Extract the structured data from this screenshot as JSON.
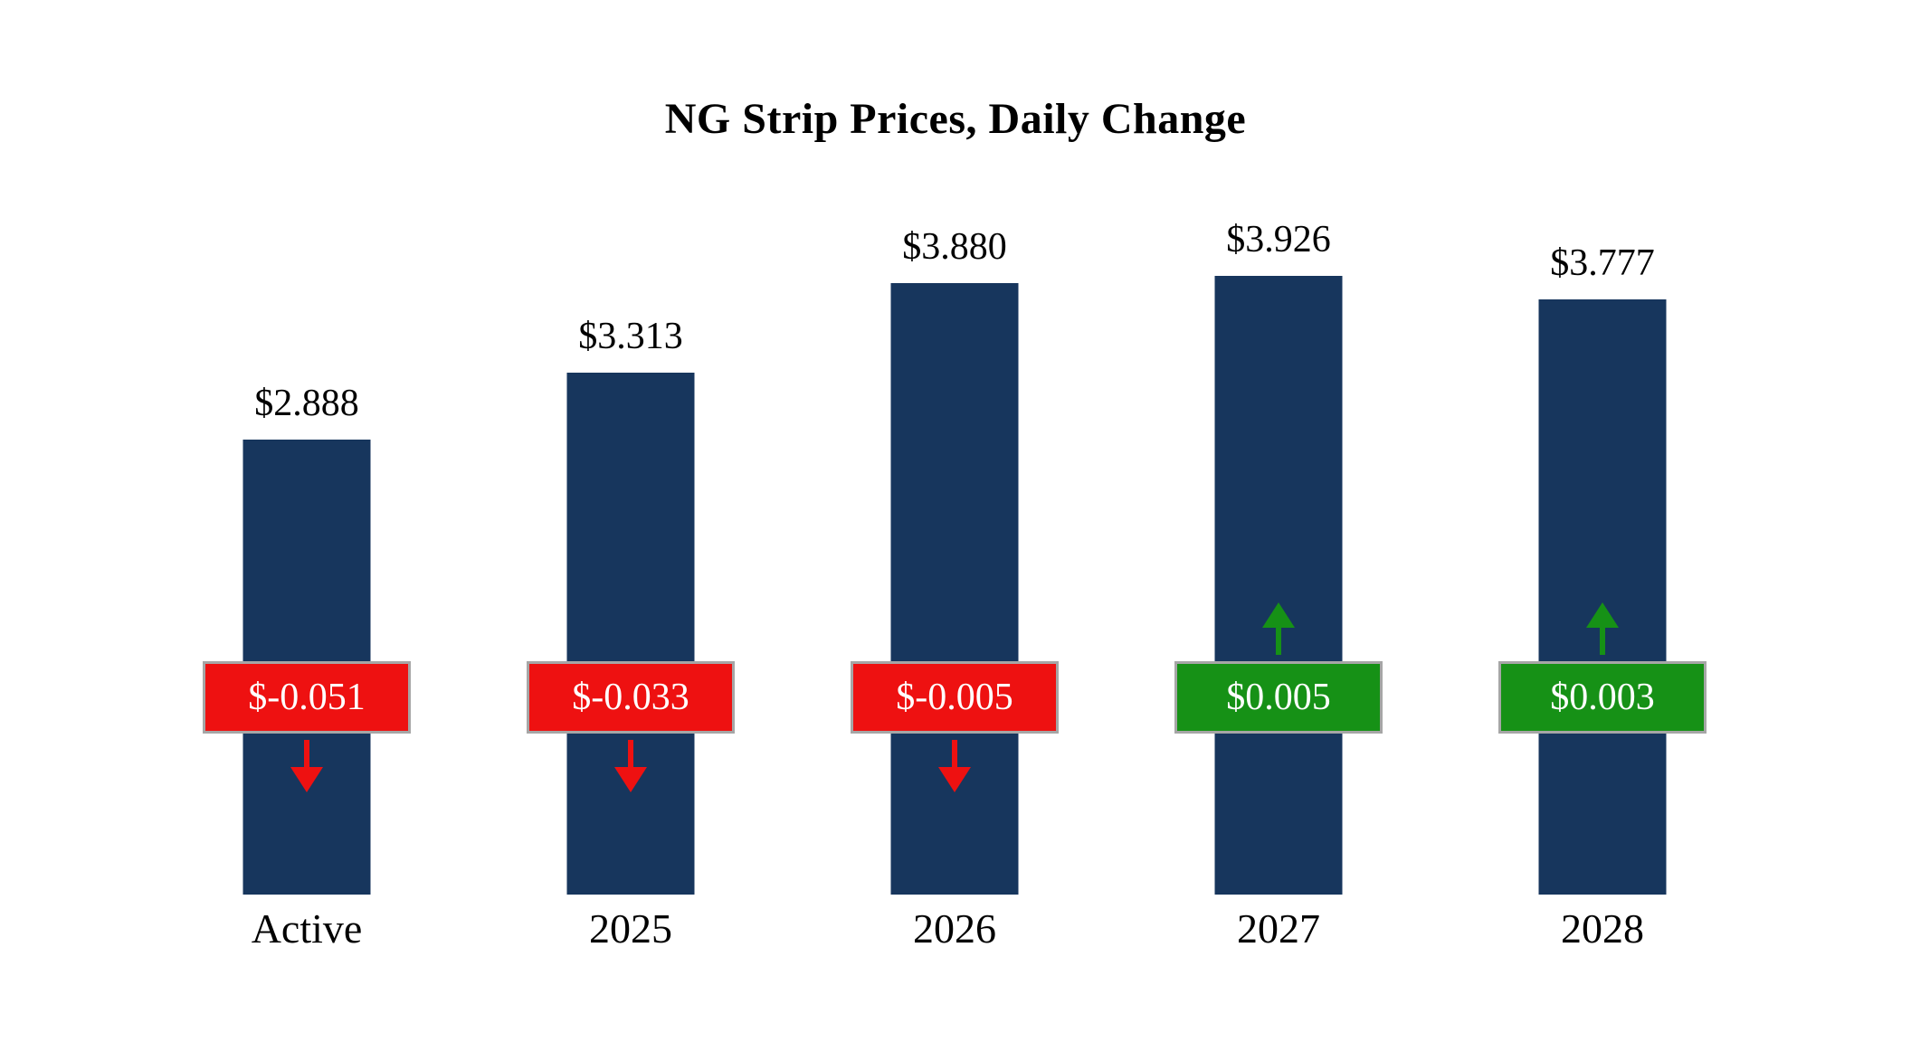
{
  "chart_data": {
    "type": "bar",
    "title": "NG Strip Prices, Daily Change",
    "categories": [
      "Active",
      "2025",
      "2026",
      "2027",
      "2028"
    ],
    "values": [
      2.888,
      3.313,
      3.88,
      3.926,
      3.777
    ],
    "value_labels": [
      "$2.888",
      "$3.313",
      "$3.880",
      "$3.926",
      "$3.777"
    ],
    "changes": [
      -0.051,
      -0.033,
      -0.005,
      0.005,
      0.003
    ],
    "change_labels": [
      "$-0.051",
      "$-0.033",
      "$-0.005",
      "$0.005",
      "$0.003"
    ],
    "directions": [
      "down",
      "down",
      "down",
      "up",
      "up"
    ],
    "bar_color": "#17365d",
    "down_color": "#ee1111",
    "up_color": "#169116",
    "badge_border_color": "#a6a6a6",
    "badge_text_color": "#ffffff",
    "xlabel": "",
    "ylabel": "",
    "ylim": [
      0,
      4.2
    ],
    "grid": false,
    "legend": false
  }
}
